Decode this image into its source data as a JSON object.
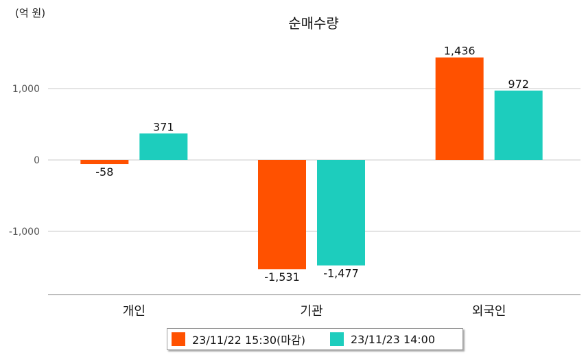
{
  "chart_data": {
    "type": "bar",
    "title": "순매수량",
    "unit_label": "(억 원)",
    "categories": [
      "개인",
      "기관",
      "외국인"
    ],
    "series": [
      {
        "name": "23/11/22 15:30(마감)",
        "color": "#FF5100",
        "values": [
          -58,
          -1531,
          1436
        ],
        "labels": [
          "-58",
          "-1,531",
          "1,436"
        ]
      },
      {
        "name": "23/11/23 14:00",
        "color": "#1DCDBD",
        "values": [
          371,
          -1477,
          972
        ],
        "labels": [
          "371",
          "-1,477",
          "972"
        ]
      }
    ],
    "y_ticks": [
      1000,
      0,
      -1000
    ],
    "y_tick_labels": [
      "1,000",
      "0",
      "-1,000"
    ],
    "ylim": [
      -1900,
      1700
    ],
    "grid": true,
    "legend_position": "bottom"
  }
}
